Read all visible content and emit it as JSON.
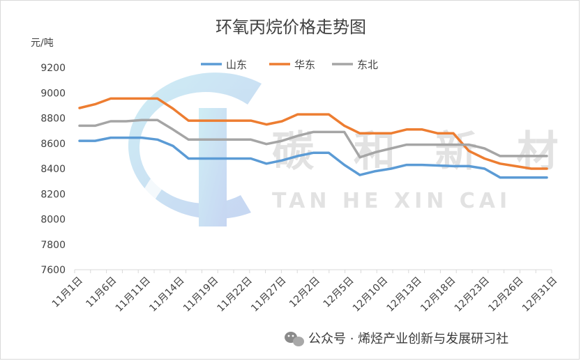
{
  "chart_data": {
    "type": "line",
    "title": "环氧丙烷价格走势图",
    "ylabel": "元/吨",
    "xlabel": "",
    "ylim": [
      7600,
      9200
    ],
    "yticks": [
      7600,
      7800,
      8000,
      8200,
      8400,
      8600,
      8800,
      9000,
      9200
    ],
    "xtick_labels": [
      "11月1日",
      "11月6日",
      "11月11日",
      "11月14日",
      "11月19日",
      "11月22日",
      "11月27日",
      "12月2日",
      "12月5日",
      "12月10日",
      "12月13日",
      "12月18日",
      "12月23日",
      "12月26日",
      "12月31日"
    ],
    "legend_position": "top-center",
    "grid": false,
    "x_count": 31,
    "series": [
      {
        "name": "山东",
        "color": "#5b9bd5",
        "values": [
          8620,
          8620,
          8645,
          8645,
          8645,
          8630,
          8580,
          8480,
          8480,
          8480,
          8480,
          8480,
          8440,
          8465,
          8500,
          8525,
          8525,
          8430,
          8350,
          8380,
          8400,
          8430,
          8430,
          8425,
          8420,
          8420,
          8400,
          8330,
          8330,
          8330,
          8330
        ]
      },
      {
        "name": "华东",
        "color": "#ed7d31",
        "values": [
          8880,
          8910,
          8955,
          8955,
          8955,
          8955,
          8875,
          8780,
          8780,
          8780,
          8780,
          8780,
          8750,
          8775,
          8830,
          8830,
          8830,
          8740,
          8680,
          8680,
          8680,
          8710,
          8710,
          8680,
          8680,
          8540,
          8480,
          8440,
          8420,
          8400,
          8400
        ]
      },
      {
        "name": "东北",
        "color": "#a5a5a5",
        "values": [
          8740,
          8740,
          8775,
          8775,
          8785,
          8785,
          8710,
          8630,
          8630,
          8630,
          8630,
          8630,
          8595,
          8620,
          8660,
          8690,
          8690,
          8690,
          8490,
          8530,
          8560,
          8590,
          8590,
          8590,
          8590,
          8590,
          8560,
          8500,
          8500,
          8500,
          8500
        ]
      }
    ]
  },
  "watermark": {
    "chinese": "碳 和 新 材",
    "pinyin": "TAN  HE  XIN  CAI"
  },
  "footer": {
    "text": "公众号 · 烯烃产业创新与发展研习社",
    "icon": "wechat-icon"
  }
}
